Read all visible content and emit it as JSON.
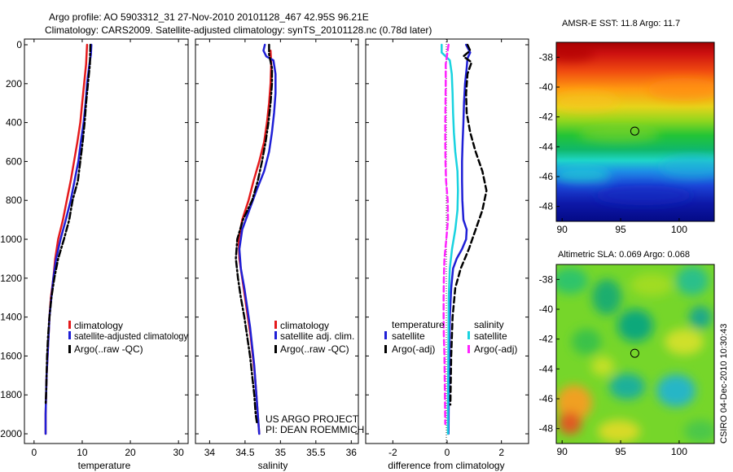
{
  "header": {
    "line1": "Argo profile: AO 5903312_31 27-Nov-2010 20101128_467 42.95S 96.21E",
    "line2": "Climatology: CARS2009. Satellite-adjusted climatology: synTS_20101128.nc (0.78d later)"
  },
  "colors": {
    "climatology": "#e41a1c",
    "satellite": "#1f1fd6",
    "argo": "#000000",
    "satellite_salinity": "#19d3e0",
    "argo_salinity": "#ff22ff"
  },
  "chart_data": [
    {
      "type": "line",
      "xlabel": "temperature",
      "xlim": [
        -2,
        32
      ],
      "ylim": [
        2050,
        0
      ],
      "xticks": [
        0,
        10,
        20,
        30
      ],
      "yticks": [
        0,
        200,
        400,
        600,
        800,
        1000,
        1200,
        1400,
        1600,
        1800,
        2000
      ],
      "legend": {
        "placement": "bottom-right",
        "entries": [
          "climatology",
          "satellite-adjusted climatology",
          "Argo(..raw -QC)"
        ]
      },
      "series": [
        {
          "name": "climatology",
          "style": "solid",
          "color": "#e41a1c",
          "points": [
            [
              11.0,
              0
            ],
            [
              10.8,
              100
            ],
            [
              10.4,
              200
            ],
            [
              10.0,
              300
            ],
            [
              9.6,
              400
            ],
            [
              9.0,
              500
            ],
            [
              8.3,
              600
            ],
            [
              7.6,
              700
            ],
            [
              6.8,
              800
            ],
            [
              6.0,
              900
            ],
            [
              5.0,
              1000
            ],
            [
              4.4,
              1100
            ],
            [
              4.0,
              1200
            ],
            [
              3.5,
              1300
            ],
            [
              3.2,
              1400
            ],
            [
              3.0,
              1500
            ],
            [
              2.8,
              1600
            ],
            [
              2.6,
              1700
            ],
            [
              2.5,
              1800
            ],
            [
              2.4,
              1900
            ],
            [
              2.4,
              2000
            ]
          ]
        },
        {
          "name": "satellite-adjusted climatology",
          "style": "solid",
          "color": "#1f1fd6",
          "points": [
            [
              11.9,
              0
            ],
            [
              11.8,
              50
            ],
            [
              11.5,
              100
            ],
            [
              11.0,
              200
            ],
            [
              10.7,
              300
            ],
            [
              10.3,
              400
            ],
            [
              9.7,
              500
            ],
            [
              9.2,
              600
            ],
            [
              8.4,
              700
            ],
            [
              7.6,
              800
            ],
            [
              6.6,
              900
            ],
            [
              5.5,
              1000
            ],
            [
              4.6,
              1100
            ],
            [
              4.0,
              1200
            ],
            [
              3.6,
              1300
            ],
            [
              3.2,
              1400
            ],
            [
              3.0,
              1500
            ],
            [
              2.8,
              1600
            ],
            [
              2.6,
              1700
            ],
            [
              2.5,
              1800
            ],
            [
              2.4,
              1900
            ],
            [
              2.4,
              2000
            ]
          ]
        },
        {
          "name": "Argo(..raw -QC)",
          "style": "dashdot",
          "color": "#000000",
          "points": [
            [
              11.7,
              0
            ],
            [
              11.6,
              100
            ],
            [
              11.2,
              200
            ],
            [
              10.8,
              300
            ],
            [
              10.5,
              400
            ],
            [
              10.1,
              500
            ],
            [
              9.6,
              600
            ],
            [
              9.1,
              700
            ],
            [
              8.0,
              800
            ],
            [
              7.3,
              900
            ],
            [
              6.2,
              1000
            ],
            [
              5.0,
              1100
            ],
            [
              4.2,
              1200
            ],
            [
              3.6,
              1300
            ],
            [
              3.2,
              1400
            ],
            [
              2.9,
              1500
            ],
            [
              2.7,
              1600
            ],
            [
              2.6,
              1700
            ],
            [
              2.5,
              1800
            ],
            [
              2.4,
              1850
            ]
          ]
        }
      ]
    },
    {
      "type": "line",
      "xlabel": "salinity",
      "xlim": [
        33.8,
        36.1
      ],
      "ylim": [
        2050,
        0
      ],
      "xticks": [
        34,
        34.5,
        35,
        35.5,
        36
      ],
      "xticklabels": [
        "34",
        "34.5",
        "35",
        "35.5",
        "36"
      ],
      "legend": {
        "placement": "bottom-right",
        "entries": [
          "climatology",
          "satellite adj. clim.",
          "Argo(..raw -QC)"
        ]
      },
      "annotations": [
        "US ARGO PROJECT",
        "PI: DEAN ROEMMICH"
      ],
      "series": [
        {
          "name": "climatology",
          "style": "solid",
          "color": "#e41a1c",
          "points": [
            [
              34.86,
              30
            ],
            [
              34.87,
              100
            ],
            [
              34.86,
              200
            ],
            [
              34.84,
              300
            ],
            [
              34.81,
              400
            ],
            [
              34.77,
              500
            ],
            [
              34.7,
              600
            ],
            [
              34.62,
              700
            ],
            [
              34.55,
              800
            ],
            [
              34.46,
              900
            ],
            [
              34.41,
              1000
            ],
            [
              34.42,
              1100
            ],
            [
              34.46,
              1200
            ],
            [
              34.5,
              1300
            ],
            [
              34.54,
              1400
            ],
            [
              34.58,
              1500
            ],
            [
              34.61,
              1600
            ],
            [
              34.64,
              1700
            ],
            [
              34.66,
              1800
            ],
            [
              34.68,
              1900
            ],
            [
              34.7,
              2000
            ]
          ]
        },
        {
          "name": "satellite adj. clim.",
          "style": "solid",
          "color": "#1f1fd6",
          "points": [
            [
              34.78,
              0
            ],
            [
              34.76,
              30
            ],
            [
              34.8,
              60
            ],
            [
              34.9,
              80
            ],
            [
              34.93,
              150
            ],
            [
              34.93,
              250
            ],
            [
              34.91,
              350
            ],
            [
              34.88,
              450
            ],
            [
              34.84,
              550
            ],
            [
              34.77,
              650
            ],
            [
              34.66,
              750
            ],
            [
              34.56,
              850
            ],
            [
              34.46,
              950
            ],
            [
              34.42,
              1050
            ],
            [
              34.44,
              1150
            ],
            [
              34.49,
              1250
            ],
            [
              34.53,
              1350
            ],
            [
              34.57,
              1450
            ],
            [
              34.6,
              1550
            ],
            [
              34.63,
              1650
            ],
            [
              34.65,
              1750
            ],
            [
              34.67,
              1850
            ],
            [
              34.69,
              1950
            ],
            [
              34.7,
              2000
            ]
          ]
        },
        {
          "name": "Argo(..raw -QC)",
          "style": "dashdot",
          "color": "#000000",
          "points": [
            [
              34.84,
              0
            ],
            [
              34.84,
              50
            ],
            [
              34.88,
              120
            ],
            [
              34.88,
              200
            ],
            [
              34.86,
              300
            ],
            [
              34.83,
              400
            ],
            [
              34.79,
              500
            ],
            [
              34.74,
              600
            ],
            [
              34.68,
              700
            ],
            [
              34.6,
              800
            ],
            [
              34.47,
              900
            ],
            [
              34.39,
              1000
            ],
            [
              34.37,
              1100
            ],
            [
              34.4,
              1200
            ],
            [
              34.44,
              1300
            ],
            [
              34.49,
              1400
            ],
            [
              34.53,
              1500
            ],
            [
              34.57,
              1600
            ],
            [
              34.6,
              1700
            ],
            [
              34.63,
              1800
            ],
            [
              34.65,
              1900
            ],
            [
              34.67,
              1950
            ]
          ]
        }
      ]
    },
    {
      "type": "line",
      "xlabel": "difference from climatology",
      "xlim": [
        -3,
        3
      ],
      "ylim": [
        2050,
        0
      ],
      "xticks": [
        -2,
        0,
        2
      ],
      "legend": {
        "placement": "bottom",
        "headings": [
          "temperature",
          "salinity"
        ],
        "entries": [
          "satellite",
          "Argo(-adj)",
          "satellite",
          "Argo(-adj)"
        ]
      },
      "series": [
        {
          "name": "satellite",
          "group": "temperature",
          "style": "solid",
          "color": "#1f1fd6",
          "points": [
            [
              0.7,
              0
            ],
            [
              0.85,
              40
            ],
            [
              0.75,
              70
            ],
            [
              0.72,
              120
            ],
            [
              0.66,
              200
            ],
            [
              0.62,
              300
            ],
            [
              0.6,
              400
            ],
            [
              0.57,
              500
            ],
            [
              0.55,
              600
            ],
            [
              0.55,
              700
            ],
            [
              0.56,
              800
            ],
            [
              0.6,
              900
            ],
            [
              0.72,
              950
            ],
            [
              0.7,
              1000
            ],
            [
              0.55,
              1050
            ],
            [
              0.35,
              1100
            ],
            [
              0.22,
              1150
            ],
            [
              0.15,
              1250
            ],
            [
              0.1,
              1400
            ],
            [
              0.08,
              1600
            ],
            [
              0.06,
              1800
            ],
            [
              0.05,
              2000
            ]
          ]
        },
        {
          "name": "Argo(-adj)",
          "group": "temperature",
          "style": "dashed",
          "color": "#000000",
          "points": [
            [
              0.75,
              0
            ],
            [
              0.85,
              30
            ],
            [
              0.6,
              60
            ],
            [
              0.9,
              90
            ],
            [
              0.75,
              150
            ],
            [
              0.7,
              250
            ],
            [
              0.72,
              350
            ],
            [
              0.85,
              450
            ],
            [
              1.05,
              550
            ],
            [
              1.3,
              650
            ],
            [
              1.45,
              750
            ],
            [
              1.3,
              850
            ],
            [
              1.05,
              950
            ],
            [
              0.8,
              1050
            ],
            [
              0.5,
              1150
            ],
            [
              0.3,
              1250
            ],
            [
              0.2,
              1400
            ],
            [
              0.15,
              1600
            ],
            [
              0.12,
              1850
            ]
          ]
        },
        {
          "name": "satellite",
          "group": "salinity",
          "style": "solid",
          "color": "#19d3e0",
          "points": [
            [
              -0.2,
              0
            ],
            [
              -0.2,
              40
            ],
            [
              -0.05,
              60
            ],
            [
              0.1,
              80
            ],
            [
              0.17,
              150
            ],
            [
              0.2,
              250
            ],
            [
              0.22,
              350
            ],
            [
              0.25,
              450
            ],
            [
              0.3,
              550
            ],
            [
              0.38,
              650
            ],
            [
              0.4,
              750
            ],
            [
              0.38,
              850
            ],
            [
              0.3,
              950
            ],
            [
              0.18,
              1050
            ],
            [
              0.1,
              1150
            ],
            [
              0.06,
              1300
            ],
            [
              0.05,
              1500
            ],
            [
              0.04,
              1700
            ],
            [
              0.03,
              1900
            ],
            [
              0.03,
              2000
            ]
          ]
        },
        {
          "name": "Argo(-adj)",
          "group": "salinity",
          "style": "dashed",
          "color": "#ff22ff",
          "points": [
            [
              0.05,
              0
            ],
            [
              -0.05,
              100
            ],
            [
              -0.05,
              200
            ],
            [
              -0.06,
              300
            ],
            [
              -0.07,
              400
            ],
            [
              -0.07,
              500
            ],
            [
              -0.06,
              600
            ],
            [
              -0.04,
              700
            ],
            [
              0.02,
              800
            ],
            [
              0.03,
              900
            ],
            [
              -0.03,
              1000
            ],
            [
              -0.1,
              1100
            ],
            [
              -0.12,
              1200
            ],
            [
              -0.13,
              1300
            ],
            [
              -0.13,
              1400
            ],
            [
              -0.12,
              1500
            ],
            [
              -0.1,
              1600
            ],
            [
              -0.09,
              1700
            ],
            [
              -0.08,
              1800
            ],
            [
              -0.07,
              1950
            ]
          ]
        }
      ]
    },
    {
      "type": "heatmap",
      "title": "AMSR-E SST: 11.8 Argo: 11.7",
      "xlim": [
        89.5,
        103
      ],
      "ylim": [
        -49,
        -37
      ],
      "xticks": [
        90,
        95,
        100
      ],
      "yticks": [
        -38,
        -40,
        -42,
        -44,
        -46,
        -48
      ],
      "marker": {
        "lon": 96.21,
        "lat": -42.95
      }
    },
    {
      "type": "heatmap",
      "title": "Altimetric SLA: 0.069 Argo: 0.068",
      "xlim": [
        89.5,
        103
      ],
      "ylim": [
        -49,
        -37
      ],
      "xticks": [
        90,
        95,
        100
      ],
      "yticks": [
        -38,
        -40,
        -42,
        -44,
        -46,
        -48
      ],
      "marker": {
        "lon": 96.21,
        "lat": -42.95
      }
    }
  ],
  "footer": {
    "credit": "CSIRO 04-Dec-2010 10:30:43"
  }
}
